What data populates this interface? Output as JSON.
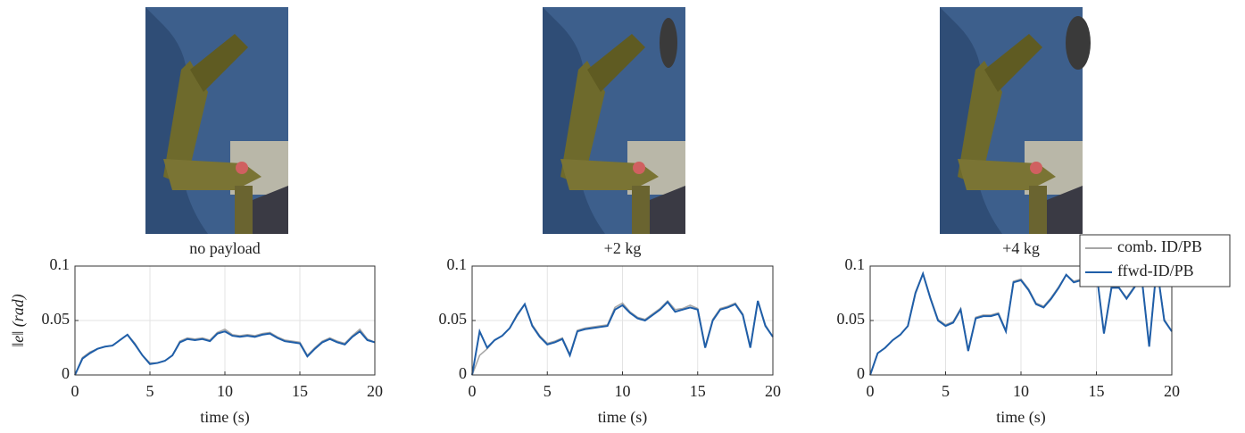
{
  "chart_data": [
    {
      "type": "line",
      "title": "no payload",
      "xlabel": "time (s)",
      "ylabel": "‖e‖ (rad)",
      "x": [
        0,
        0.5,
        1,
        1.5,
        2,
        2.5,
        3,
        3.5,
        4,
        4.5,
        5,
        5.5,
        6,
        6.5,
        7,
        7.5,
        8,
        8.5,
        9,
        9.5,
        10,
        10.5,
        11,
        11.5,
        12,
        12.5,
        13,
        13.5,
        14,
        14.5,
        15,
        15.5,
        16,
        16.5,
        17,
        17.5,
        18,
        18.5,
        19,
        19.5,
        20
      ],
      "xlim": [
        0,
        20
      ],
      "xticks": [
        0,
        5,
        10,
        15,
        20
      ],
      "ylim": [
        0,
        0.1
      ],
      "yticks": [
        0,
        0.05,
        0.1
      ],
      "grid": true,
      "series": [
        {
          "color": "#a6a6a6",
          "values": [
            0,
            0.016,
            0.021,
            0.024,
            0.026,
            0.027,
            0.032,
            0.037,
            0.029,
            0.018,
            0.011,
            0.011,
            0.013,
            0.018,
            0.031,
            0.034,
            0.033,
            0.034,
            0.032,
            0.039,
            0.042,
            0.037,
            0.036,
            0.037,
            0.036,
            0.038,
            0.039,
            0.035,
            0.032,
            0.031,
            0.03,
            0.018,
            0.025,
            0.031,
            0.034,
            0.031,
            0.029,
            0.036,
            0.042,
            0.033,
            0.03
          ]
        },
        {
          "color": "#1f5ea8",
          "values": [
            0,
            0.015,
            0.02,
            0.024,
            0.026,
            0.027,
            0.032,
            0.037,
            0.028,
            0.018,
            0.01,
            0.011,
            0.013,
            0.018,
            0.03,
            0.033,
            0.032,
            0.033,
            0.031,
            0.038,
            0.04,
            0.036,
            0.035,
            0.036,
            0.035,
            0.037,
            0.038,
            0.034,
            0.031,
            0.03,
            0.029,
            0.017,
            0.024,
            0.03,
            0.033,
            0.03,
            0.028,
            0.035,
            0.04,
            0.032,
            0.03
          ]
        }
      ]
    },
    {
      "type": "line",
      "title": "+2 kg",
      "xlabel": "time (s)",
      "x": [
        0,
        0.5,
        1,
        1.5,
        2,
        2.5,
        3,
        3.5,
        4,
        4.5,
        5,
        5.5,
        6,
        6.5,
        7,
        7.5,
        8,
        8.5,
        9,
        9.5,
        10,
        10.5,
        11,
        11.5,
        12,
        12.5,
        13,
        13.5,
        14,
        14.5,
        15,
        15.5,
        16,
        16.5,
        17,
        17.5,
        18,
        18.5,
        19,
        19.5,
        20
      ],
      "xlim": [
        0,
        20
      ],
      "xticks": [
        0,
        5,
        10,
        15,
        20
      ],
      "ylim": [
        0,
        0.1
      ],
      "yticks": [
        0,
        0.05,
        0.1
      ],
      "grid": true,
      "series": [
        {
          "color": "#a6a6a6",
          "values": [
            0,
            0.018,
            0.024,
            0.032,
            0.036,
            0.043,
            0.056,
            0.065,
            0.046,
            0.036,
            0.029,
            0.031,
            0.034,
            0.019,
            0.041,
            0.043,
            0.044,
            0.045,
            0.046,
            0.062,
            0.066,
            0.058,
            0.053,
            0.051,
            0.056,
            0.061,
            0.068,
            0.06,
            0.061,
            0.064,
            0.061,
            0.026,
            0.051,
            0.061,
            0.063,
            0.066,
            0.056,
            0.026,
            0.068,
            0.046,
            0.035
          ]
        },
        {
          "color": "#1f5ea8",
          "values": [
            0,
            0.04,
            0.025,
            0.032,
            0.036,
            0.043,
            0.055,
            0.065,
            0.045,
            0.035,
            0.028,
            0.03,
            0.033,
            0.018,
            0.04,
            0.042,
            0.043,
            0.044,
            0.045,
            0.06,
            0.064,
            0.057,
            0.052,
            0.05,
            0.055,
            0.06,
            0.067,
            0.058,
            0.06,
            0.062,
            0.06,
            0.025,
            0.05,
            0.06,
            0.062,
            0.065,
            0.055,
            0.025,
            0.068,
            0.045,
            0.035
          ]
        }
      ]
    },
    {
      "type": "line",
      "title": "+4 kg",
      "xlabel": "time (s)",
      "x": [
        0,
        0.5,
        1,
        1.5,
        2,
        2.5,
        3,
        3.5,
        4,
        4.5,
        5,
        5.5,
        6,
        6.5,
        7,
        7.5,
        8,
        8.5,
        9,
        9.5,
        10,
        10.5,
        11,
        11.5,
        12,
        12.5,
        13,
        13.5,
        14,
        14.5,
        15,
        15.5,
        16,
        16.5,
        17,
        17.5,
        18,
        18.5,
        19,
        19.5,
        20
      ],
      "xlim": [
        0,
        20
      ],
      "xticks": [
        0,
        5,
        10,
        15,
        20
      ],
      "ylim": [
        0,
        0.1
      ],
      "yticks": [
        0,
        0.05,
        0.1
      ],
      "grid": true,
      "legend": "upper right",
      "series": [
        {
          "name": "comb. ID/PB",
          "color": "#a6a6a6",
          "values": [
            0,
            0.02,
            0.025,
            0.032,
            0.037,
            0.045,
            0.076,
            0.093,
            0.071,
            0.051,
            0.046,
            0.049,
            0.061,
            0.023,
            0.053,
            0.055,
            0.055,
            0.057,
            0.041,
            0.086,
            0.088,
            0.079,
            0.066,
            0.063,
            0.071,
            0.081,
            0.092,
            0.086,
            0.088,
            0.09,
            0.095,
            0.039,
            0.081,
            0.08,
            0.071,
            0.081,
            0.09,
            0.027,
            0.1,
            0.051,
            0.04
          ]
        },
        {
          "name": "ffwd-ID/PB",
          "color": "#1f5ea8",
          "values": [
            0,
            0.02,
            0.025,
            0.032,
            0.037,
            0.045,
            0.075,
            0.093,
            0.07,
            0.05,
            0.045,
            0.048,
            0.06,
            0.022,
            0.052,
            0.054,
            0.054,
            0.056,
            0.04,
            0.085,
            0.087,
            0.078,
            0.065,
            0.062,
            0.07,
            0.08,
            0.092,
            0.085,
            0.087,
            0.09,
            0.095,
            0.038,
            0.08,
            0.08,
            0.07,
            0.08,
            0.09,
            0.026,
            0.1,
            0.05,
            0.04
          ]
        }
      ]
    }
  ]
}
